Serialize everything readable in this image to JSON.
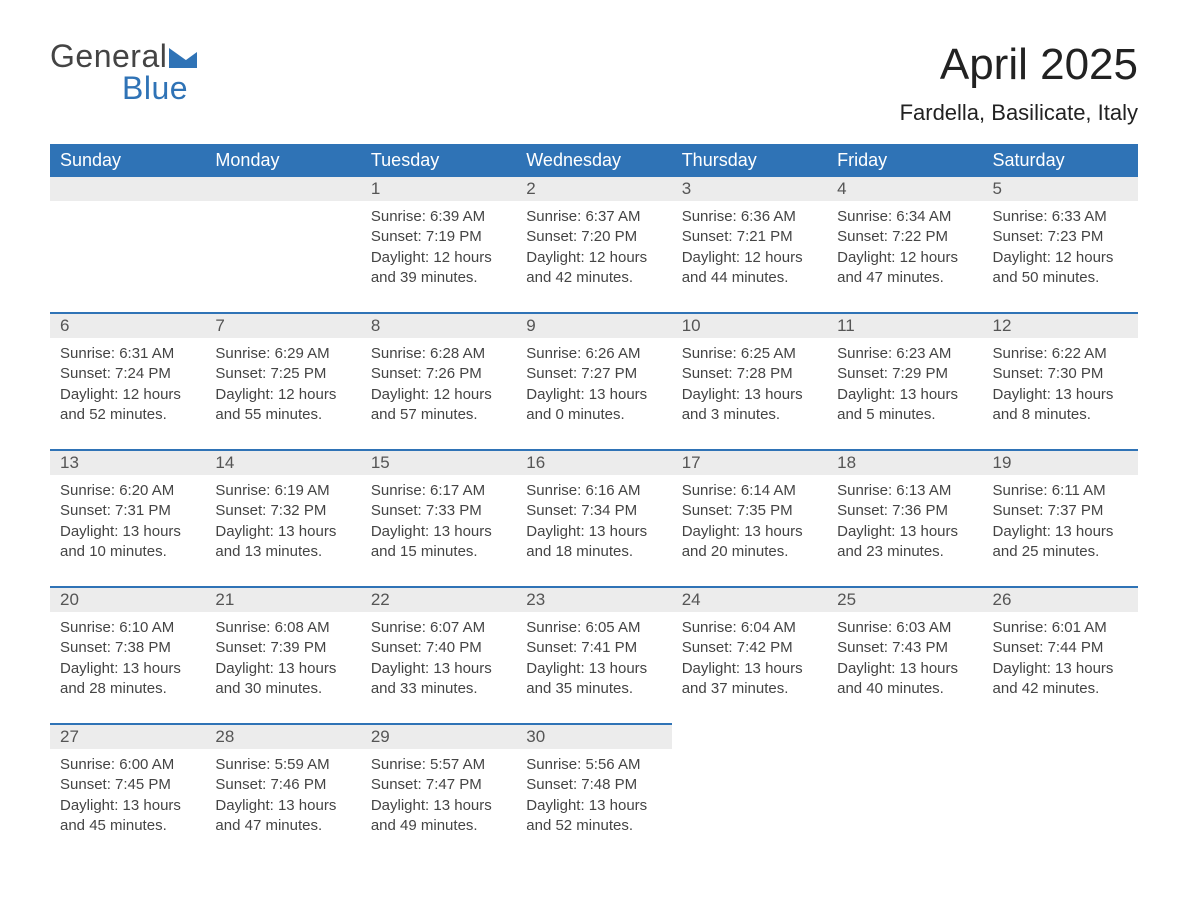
{
  "logo": {
    "text1": "General",
    "text2": "Blue",
    "tri_color": "#2f73b6"
  },
  "title": "April 2025",
  "location": "Fardella, Basilicate, Italy",
  "colors": {
    "header_bg": "#2f73b6",
    "header_text": "#ffffff",
    "daynum_bg": "#ececec",
    "row_border": "#2f73b6",
    "text": "#444444",
    "background": "#ffffff"
  },
  "day_headers": [
    "Sunday",
    "Monday",
    "Tuesday",
    "Wednesday",
    "Thursday",
    "Friday",
    "Saturday"
  ],
  "weeks": [
    [
      null,
      null,
      {
        "n": "1",
        "sunrise": "6:39 AM",
        "sunset": "7:19 PM",
        "daylight": "12 hours and 39 minutes."
      },
      {
        "n": "2",
        "sunrise": "6:37 AM",
        "sunset": "7:20 PM",
        "daylight": "12 hours and 42 minutes."
      },
      {
        "n": "3",
        "sunrise": "6:36 AM",
        "sunset": "7:21 PM",
        "daylight": "12 hours and 44 minutes."
      },
      {
        "n": "4",
        "sunrise": "6:34 AM",
        "sunset": "7:22 PM",
        "daylight": "12 hours and 47 minutes."
      },
      {
        "n": "5",
        "sunrise": "6:33 AM",
        "sunset": "7:23 PM",
        "daylight": "12 hours and 50 minutes."
      }
    ],
    [
      {
        "n": "6",
        "sunrise": "6:31 AM",
        "sunset": "7:24 PM",
        "daylight": "12 hours and 52 minutes."
      },
      {
        "n": "7",
        "sunrise": "6:29 AM",
        "sunset": "7:25 PM",
        "daylight": "12 hours and 55 minutes."
      },
      {
        "n": "8",
        "sunrise": "6:28 AM",
        "sunset": "7:26 PM",
        "daylight": "12 hours and 57 minutes."
      },
      {
        "n": "9",
        "sunrise": "6:26 AM",
        "sunset": "7:27 PM",
        "daylight": "13 hours and 0 minutes."
      },
      {
        "n": "10",
        "sunrise": "6:25 AM",
        "sunset": "7:28 PM",
        "daylight": "13 hours and 3 minutes."
      },
      {
        "n": "11",
        "sunrise": "6:23 AM",
        "sunset": "7:29 PM",
        "daylight": "13 hours and 5 minutes."
      },
      {
        "n": "12",
        "sunrise": "6:22 AM",
        "sunset": "7:30 PM",
        "daylight": "13 hours and 8 minutes."
      }
    ],
    [
      {
        "n": "13",
        "sunrise": "6:20 AM",
        "sunset": "7:31 PM",
        "daylight": "13 hours and 10 minutes."
      },
      {
        "n": "14",
        "sunrise": "6:19 AM",
        "sunset": "7:32 PM",
        "daylight": "13 hours and 13 minutes."
      },
      {
        "n": "15",
        "sunrise": "6:17 AM",
        "sunset": "7:33 PM",
        "daylight": "13 hours and 15 minutes."
      },
      {
        "n": "16",
        "sunrise": "6:16 AM",
        "sunset": "7:34 PM",
        "daylight": "13 hours and 18 minutes."
      },
      {
        "n": "17",
        "sunrise": "6:14 AM",
        "sunset": "7:35 PM",
        "daylight": "13 hours and 20 minutes."
      },
      {
        "n": "18",
        "sunrise": "6:13 AM",
        "sunset": "7:36 PM",
        "daylight": "13 hours and 23 minutes."
      },
      {
        "n": "19",
        "sunrise": "6:11 AM",
        "sunset": "7:37 PM",
        "daylight": "13 hours and 25 minutes."
      }
    ],
    [
      {
        "n": "20",
        "sunrise": "6:10 AM",
        "sunset": "7:38 PM",
        "daylight": "13 hours and 28 minutes."
      },
      {
        "n": "21",
        "sunrise": "6:08 AM",
        "sunset": "7:39 PM",
        "daylight": "13 hours and 30 minutes."
      },
      {
        "n": "22",
        "sunrise": "6:07 AM",
        "sunset": "7:40 PM",
        "daylight": "13 hours and 33 minutes."
      },
      {
        "n": "23",
        "sunrise": "6:05 AM",
        "sunset": "7:41 PM",
        "daylight": "13 hours and 35 minutes."
      },
      {
        "n": "24",
        "sunrise": "6:04 AM",
        "sunset": "7:42 PM",
        "daylight": "13 hours and 37 minutes."
      },
      {
        "n": "25",
        "sunrise": "6:03 AM",
        "sunset": "7:43 PM",
        "daylight": "13 hours and 40 minutes."
      },
      {
        "n": "26",
        "sunrise": "6:01 AM",
        "sunset": "7:44 PM",
        "daylight": "13 hours and 42 minutes."
      }
    ],
    [
      {
        "n": "27",
        "sunrise": "6:00 AM",
        "sunset": "7:45 PM",
        "daylight": "13 hours and 45 minutes."
      },
      {
        "n": "28",
        "sunrise": "5:59 AM",
        "sunset": "7:46 PM",
        "daylight": "13 hours and 47 minutes."
      },
      {
        "n": "29",
        "sunrise": "5:57 AM",
        "sunset": "7:47 PM",
        "daylight": "13 hours and 49 minutes."
      },
      {
        "n": "30",
        "sunrise": "5:56 AM",
        "sunset": "7:48 PM",
        "daylight": "13 hours and 52 minutes."
      },
      null,
      null,
      null
    ]
  ],
  "labels": {
    "sunrise": "Sunrise: ",
    "sunset": "Sunset: ",
    "daylight": "Daylight: "
  }
}
